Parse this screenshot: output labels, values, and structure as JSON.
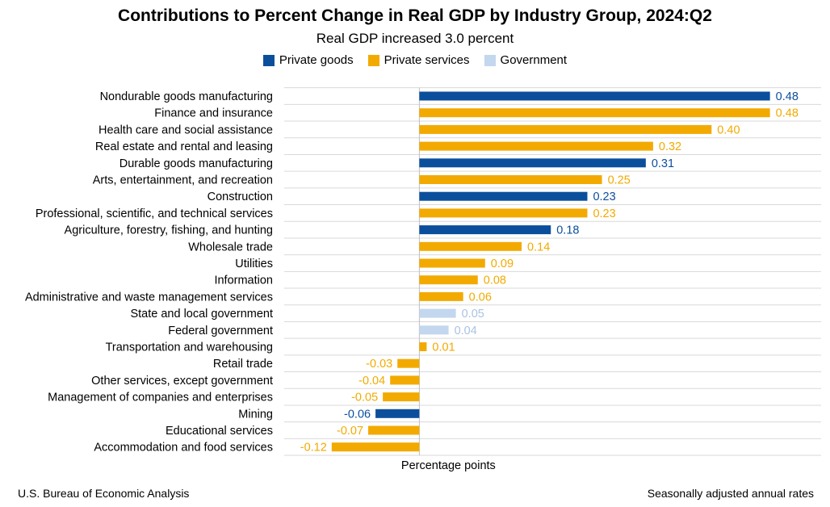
{
  "chart_data": {
    "type": "bar",
    "orientation": "horizontal",
    "title": "Contributions to Percent Change in Real GDP by Industry Group, 2024:Q2",
    "subtitle": "Real GDP increased 3.0 percent",
    "xlabel": "Percentage points",
    "xlim": [
      -0.185,
      0.55
    ],
    "grid": true,
    "legend_position": "top",
    "legend": [
      {
        "name": "Private goods",
        "color": "#0b4f9c"
      },
      {
        "name": "Private services",
        "color": "#f2aa00"
      },
      {
        "name": "Government",
        "color": "#c3d7ee"
      }
    ],
    "colors": {
      "Private goods": "#0b4f9c",
      "Private services": "#f2aa00",
      "Government": "#c3d7ee",
      "Government label": "#a9c3e2"
    },
    "bars": [
      {
        "label": "Nondurable goods manufacturing",
        "value": 0.48,
        "group": "Private goods",
        "value_label": "0.48"
      },
      {
        "label": "Finance and insurance",
        "value": 0.48,
        "group": "Private services",
        "value_label": "0.48"
      },
      {
        "label": "Health care and social assistance",
        "value": 0.4,
        "group": "Private services",
        "value_label": "0.40"
      },
      {
        "label": "Real estate and rental and leasing",
        "value": 0.32,
        "group": "Private services",
        "value_label": "0.32"
      },
      {
        "label": "Durable goods manufacturing",
        "value": 0.31,
        "group": "Private goods",
        "value_label": "0.31"
      },
      {
        "label": "Arts, entertainment, and recreation",
        "value": 0.25,
        "group": "Private services",
        "value_label": "0.25"
      },
      {
        "label": "Construction",
        "value": 0.23,
        "group": "Private goods",
        "value_label": "0.23"
      },
      {
        "label": "Professional, scientific, and technical services",
        "value": 0.23,
        "group": "Private services",
        "value_label": "0.23"
      },
      {
        "label": "Agriculture, forestry, fishing, and hunting",
        "value": 0.18,
        "group": "Private goods",
        "value_label": "0.18"
      },
      {
        "label": "Wholesale trade",
        "value": 0.14,
        "group": "Private services",
        "value_label": "0.14"
      },
      {
        "label": "Utilities",
        "value": 0.09,
        "group": "Private services",
        "value_label": "0.09"
      },
      {
        "label": "Information",
        "value": 0.08,
        "group": "Private services",
        "value_label": "0.08"
      },
      {
        "label": "Administrative and waste management services",
        "value": 0.06,
        "group": "Private services",
        "value_label": "0.06"
      },
      {
        "label": "State and local government",
        "value": 0.05,
        "group": "Government",
        "value_label": "0.05"
      },
      {
        "label": "Federal government",
        "value": 0.04,
        "group": "Government",
        "value_label": "0.04"
      },
      {
        "label": "Transportation and warehousing",
        "value": 0.01,
        "group": "Private services",
        "value_label": "0.01"
      },
      {
        "label": "Retail trade",
        "value": -0.03,
        "group": "Private services",
        "value_label": "-0.03"
      },
      {
        "label": "Other services, except government",
        "value": -0.04,
        "group": "Private services",
        "value_label": "-0.04"
      },
      {
        "label": "Management of companies and enterprises",
        "value": -0.05,
        "group": "Private services",
        "value_label": "-0.05"
      },
      {
        "label": "Mining",
        "value": -0.06,
        "group": "Private goods",
        "value_label": "-0.06"
      },
      {
        "label": "Educational services",
        "value": -0.07,
        "group": "Private services",
        "value_label": "-0.07"
      },
      {
        "label": "Accommodation and food services",
        "value": -0.12,
        "group": "Private services",
        "value_label": "-0.12"
      }
    ]
  },
  "footer": {
    "source": "U.S. Bureau of Economic Analysis",
    "note": "Seasonally adjusted annual rates"
  }
}
